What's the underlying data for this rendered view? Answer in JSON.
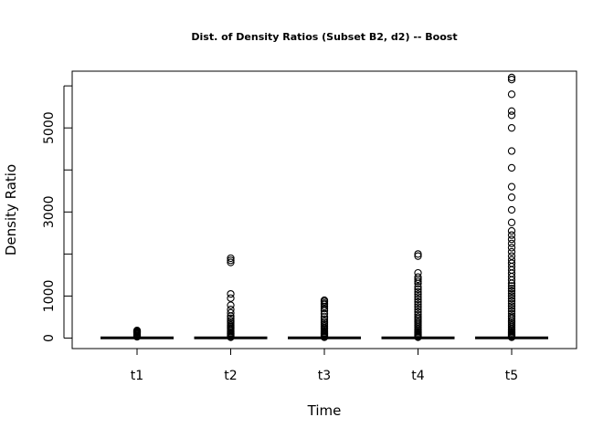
{
  "chart_data": {
    "type": "boxplot",
    "title": "Dist. of Density Ratios (Subset B2, d2) -- Boost",
    "xlabel": "Time",
    "ylabel": "Density Ratio",
    "categories": [
      "t1",
      "t2",
      "t3",
      "t4",
      "t5"
    ],
    "ylim": [
      -250,
      6350
    ],
    "yticks": [
      0,
      1000,
      3000,
      5000
    ],
    "yticks_minor": [
      2000,
      4000,
      6000
    ],
    "median": [
      5,
      5,
      5,
      5,
      5
    ],
    "outliers": [
      [
        30,
        50,
        70,
        90,
        110,
        130,
        150,
        165,
        180
      ],
      [
        20,
        40,
        60,
        80,
        100,
        120,
        150,
        180,
        210,
        240,
        270,
        300,
        340,
        380,
        420,
        470,
        520,
        600,
        680,
        780,
        950,
        1050,
        1800,
        1850,
        1900
      ],
      [
        20,
        40,
        60,
        80,
        100,
        120,
        150,
        180,
        210,
        240,
        280,
        320,
        360,
        400,
        450,
        500,
        580,
        650,
        700,
        750,
        800,
        830,
        870,
        900
      ],
      [
        20,
        40,
        60,
        80,
        100,
        130,
        160,
        190,
        220,
        260,
        300,
        340,
        380,
        420,
        460,
        500,
        560,
        620,
        680,
        740,
        800,
        860,
        920,
        980,
        1040,
        1100,
        1160,
        1220,
        1300,
        1350,
        1400,
        1450,
        1550,
        1950,
        2000
      ],
      [
        20,
        40,
        60,
        80,
        100,
        130,
        160,
        190,
        220,
        260,
        300,
        340,
        380,
        420,
        470,
        520,
        580,
        640,
        700,
        760,
        820,
        880,
        940,
        1000,
        1060,
        1120,
        1180,
        1240,
        1300,
        1380,
        1460,
        1540,
        1620,
        1700,
        1780,
        1860,
        1950,
        2050,
        2150,
        2250,
        2350,
        2450,
        2550,
        2750,
        3050,
        3350,
        3600,
        4050,
        4450,
        5000,
        5300,
        5400,
        5800,
        6150,
        6200
      ]
    ]
  }
}
